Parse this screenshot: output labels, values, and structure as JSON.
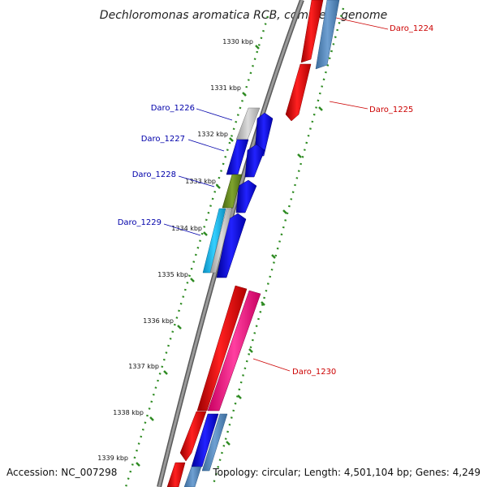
{
  "title": "Dechloromonas aromatica RCB, complete genome",
  "footer": {
    "accession": "Accession: NC_007298",
    "topology": "Topology: circular; Length: 4,501,104 bp; Genes: 4,249"
  },
  "ticks": [
    "1330 kbp",
    "1331 kbp",
    "1332 kbp",
    "1333 kbp",
    "1334 kbp",
    "1335 kbp",
    "1336 kbp",
    "1337 kbp",
    "1338 kbp",
    "1339 kbp"
  ],
  "gene_labels": {
    "daro_1224": "Daro_1224",
    "daro_1225": "Daro_1225",
    "daro_1226": "Daro_1226",
    "daro_1227": "Daro_1227",
    "daro_1228": "Daro_1228",
    "daro_1229": "Daro_1229",
    "daro_1230": "Daro_1230"
  },
  "colors": {
    "backbone": "#8a8a8a",
    "tick_dots": "#2e8b22",
    "forward_red": "#ee1111",
    "steel_blue": "#5b8fc4",
    "blue": "#1111dd",
    "gray": "#bdbdbd",
    "olive": "#6b8e23",
    "cyan": "#19b6ea",
    "pink": "#ff2a8a",
    "label_blue": "#0000aa",
    "label_red": "#cc0000"
  }
}
